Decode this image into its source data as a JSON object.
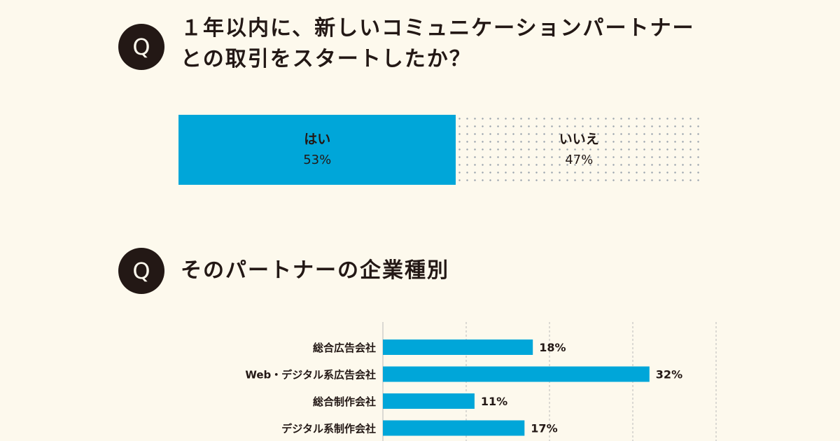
{
  "colors": {
    "background": "#fdf9ed",
    "accent": "#00a6d9",
    "text": "#231815",
    "dots": "#9aa3ad"
  },
  "questions": [
    {
      "badge": "Q",
      "title": "１年以内に、新しいコミュニケーションパートナーとの取引をスタートしたか？"
    },
    {
      "badge": "Q",
      "title": "そのパートナーの企業種別"
    }
  ],
  "chart_data": [
    {
      "type": "bar",
      "orientation": "horizontal-stacked-100",
      "categories": [
        "はい",
        "いいえ"
      ],
      "values": [
        53,
        47
      ],
      "value_labels": [
        "53%",
        "47%"
      ],
      "unit": "%"
    },
    {
      "type": "bar",
      "orientation": "horizontal",
      "categories": [
        "総合広告会社",
        "Web・デジタル系広告会社",
        "総合制作会社",
        "デジタル系制作会社"
      ],
      "values": [
        18,
        32,
        11,
        17
      ],
      "value_labels": [
        "18%",
        "32%",
        "11%",
        "17%"
      ],
      "unit": "%",
      "xlim": [
        0,
        40
      ],
      "gridlines": [
        0,
        10,
        20,
        30,
        40
      ],
      "grid": true
    }
  ]
}
